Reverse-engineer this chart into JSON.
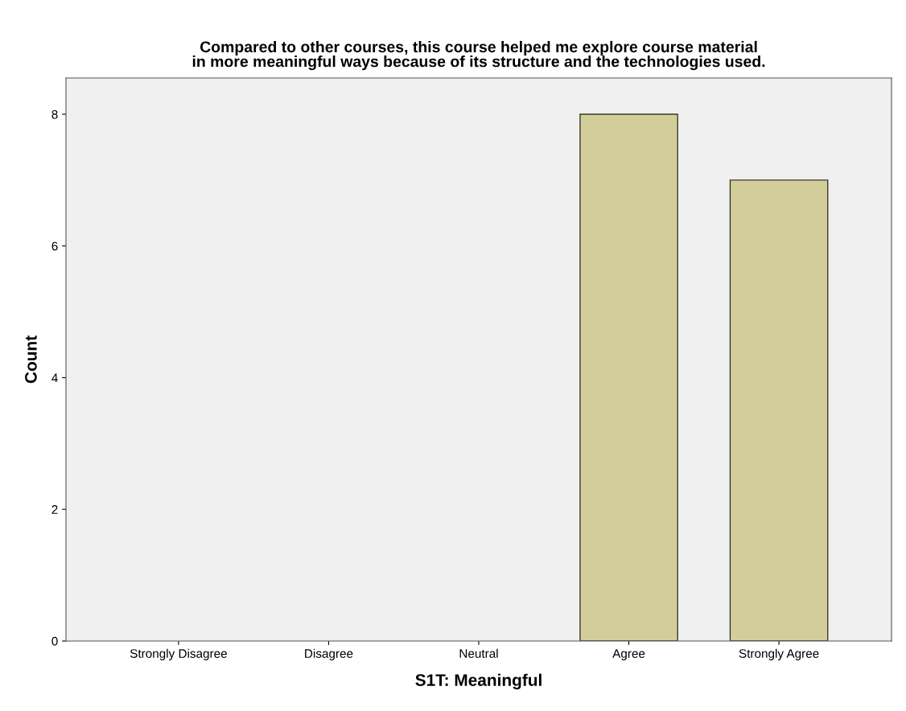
{
  "chart_data": {
    "type": "bar",
    "title": "Compared to other courses, this course helped me explore course material\nin more meaningful ways because of its structure and the technologies used.",
    "xlabel": "S1T: Meaningful",
    "ylabel": "Count",
    "categories": [
      "Strongly Disagree",
      "Disagree",
      "Neutral",
      "Agree",
      "Strongly Agree"
    ],
    "values": [
      0,
      0,
      0,
      8,
      7
    ],
    "color": "#d3ce99",
    "ylim": [
      0,
      8.55
    ],
    "yticks": [
      0,
      2,
      4,
      6,
      8
    ],
    "grid": false
  }
}
